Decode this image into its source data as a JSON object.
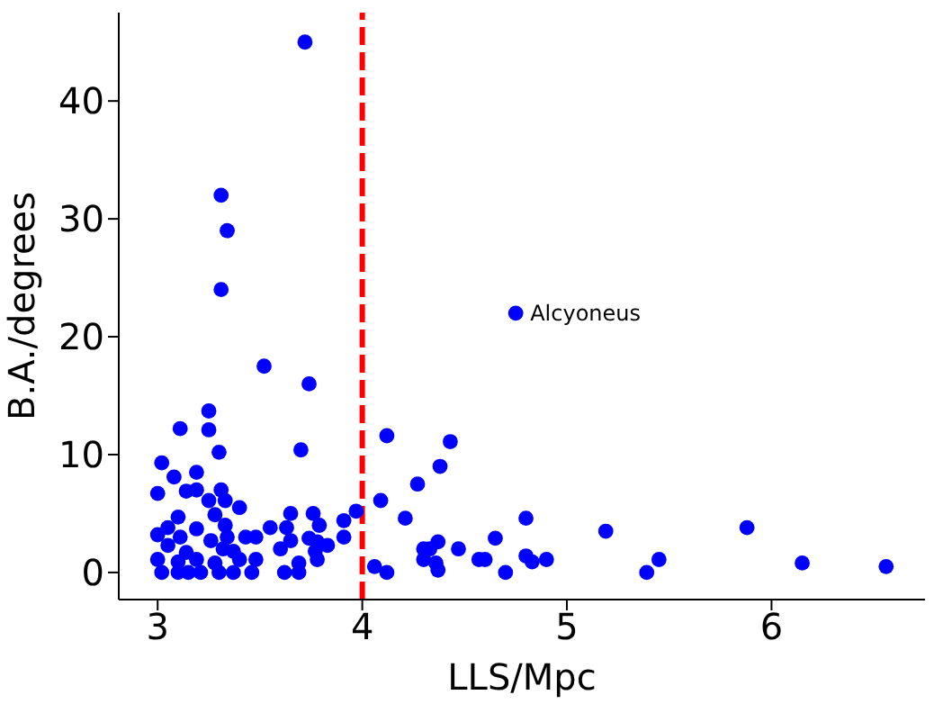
{
  "chart_data": {
    "type": "scatter",
    "xlabel": "LLS/Mpc",
    "ylabel": "B.A./degrees",
    "xlim": [
      2.81,
      6.75
    ],
    "ylim": [
      -2.3,
      47.5
    ],
    "xticks": [
      3,
      4,
      5,
      6
    ],
    "yticks": [
      0,
      10,
      20,
      30,
      40
    ],
    "grid": false,
    "legend": false,
    "marker": "circle",
    "series": [
      {
        "color": "#0000ff",
        "x": [
          3.72,
          3.31,
          3.34,
          3.31,
          3.52,
          3.74,
          3.25,
          3.11,
          3.25,
          3.3,
          3.7,
          3.02,
          3.19,
          3.08,
          3.14,
          3.19,
          3.0,
          3.31,
          3.25,
          3.33,
          3.4,
          3.28,
          3.1,
          3.65,
          3.76,
          3.97,
          3.91,
          3.79,
          3.63,
          3.55,
          3.33,
          3.19,
          3.05,
          3.0,
          3.11,
          3.26,
          3.34,
          3.43,
          3.48,
          3.65,
          3.74,
          3.78,
          3.91,
          3.83,
          3.05,
          3.14,
          3.32,
          3.37,
          3.6,
          3.77,
          3.0,
          3.1,
          3.19,
          3.28,
          3.4,
          3.48,
          3.69,
          3.78,
          3.02,
          3.1,
          3.15,
          3.21,
          3.3,
          3.37,
          3.46,
          3.62,
          3.69,
          4.75,
          4.12,
          4.43,
          4.38,
          4.27,
          4.09,
          4.21,
          4.8,
          5.19,
          5.88,
          4.37,
          4.65,
          4.3,
          4.33,
          4.47,
          4.3,
          4.36,
          4.37,
          4.57,
          4.6,
          4.8,
          4.83,
          4.9,
          4.7,
          4.06,
          4.12,
          5.39,
          5.45,
          6.15,
          6.56
        ],
        "values": [
          45,
          32,
          29,
          24,
          17.5,
          16,
          13.7,
          12.2,
          12.1,
          10.2,
          10.4,
          9.3,
          8.5,
          8.1,
          6.9,
          7.0,
          6.7,
          7.0,
          6.1,
          6.1,
          5.5,
          4.9,
          4.7,
          5.0,
          5.0,
          5.2,
          4.4,
          4.0,
          3.8,
          3.8,
          4.0,
          3.7,
          3.8,
          3.2,
          3.0,
          2.7,
          3.0,
          3.0,
          3.0,
          2.7,
          2.9,
          2.6,
          3.0,
          2.3,
          2.3,
          1.7,
          2.0,
          1.8,
          2.0,
          1.8,
          1.1,
          0.9,
          1.1,
          0.8,
          1.1,
          1.1,
          0.8,
          1.1,
          0,
          0,
          0,
          0,
          0,
          0,
          0,
          0,
          0,
          22,
          11.6,
          11.1,
          9.0,
          7.5,
          6.1,
          4.6,
          4.6,
          3.5,
          3.8,
          2.6,
          2.9,
          2.0,
          2.0,
          2.0,
          1.1,
          0.8,
          0.2,
          1.1,
          1.1,
          1.4,
          0.9,
          1.1,
          0,
          0.5,
          0,
          0,
          1.1,
          0.8,
          0.5
        ]
      }
    ],
    "ref_lines": [
      {
        "axis": "x",
        "value": 4,
        "color": "#ff0000",
        "line_style": "dashed"
      }
    ],
    "annotations": [
      {
        "text": "Alcyoneus",
        "x": 4.75,
        "y": 22
      }
    ]
  }
}
